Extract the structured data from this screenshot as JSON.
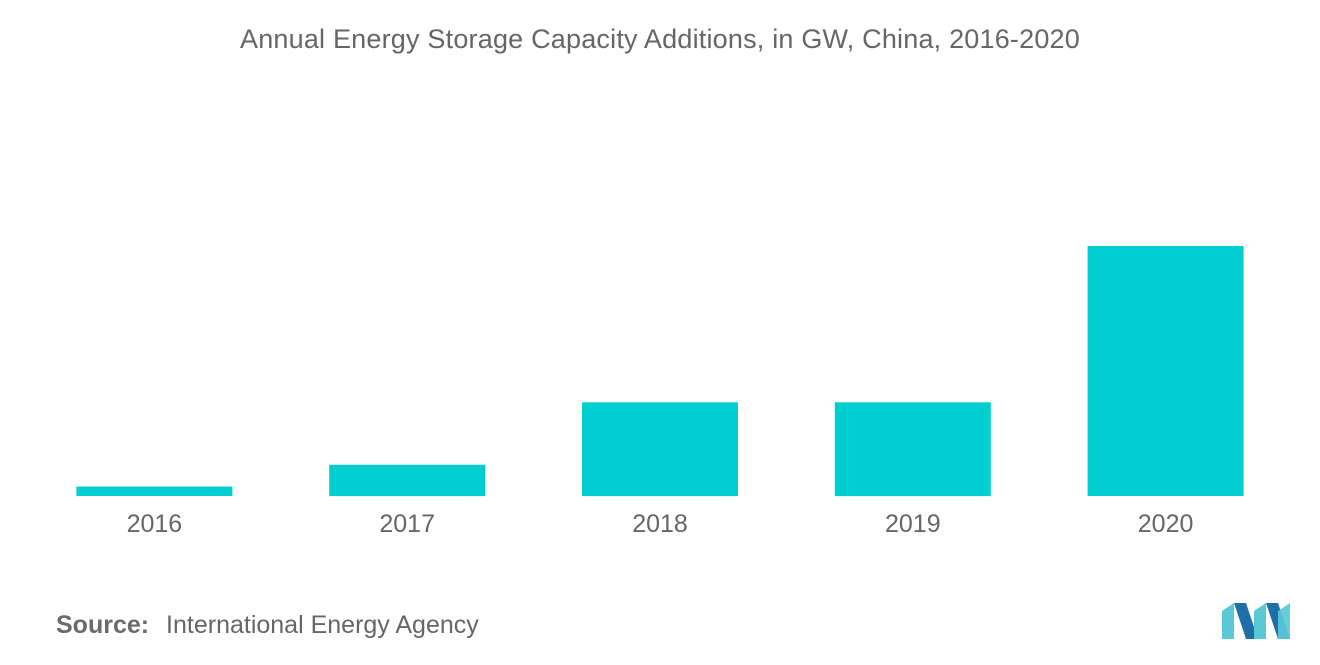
{
  "chart_data": {
    "type": "bar",
    "title": "Annual Energy Storage Capacity Additions, in GW, China, 2016-2020",
    "categories": [
      "2016",
      "2017",
      "2018",
      "2019",
      "2020"
    ],
    "values": [
      0.15,
      0.5,
      1.5,
      1.5,
      4.0
    ],
    "xlabel": "",
    "ylabel": "",
    "ylim": [
      0,
      4.0
    ],
    "grid": false,
    "legend": "none",
    "bar_color": "#00CED1"
  },
  "source": {
    "label": "Source:",
    "text": "International Energy Agency"
  },
  "colors": {
    "bar": "#00CED1",
    "text": "#666666",
    "logo_light": "#5BC8D7",
    "logo_dark": "#1E6FA8"
  }
}
